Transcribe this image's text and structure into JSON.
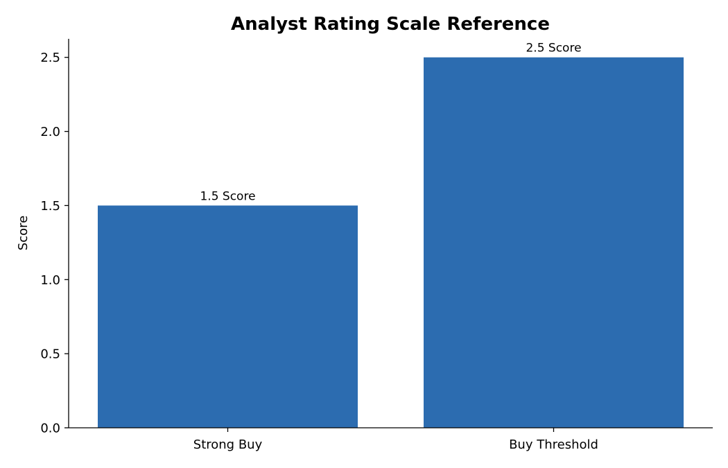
{
  "chart_data": {
    "type": "bar",
    "title": "Analyst Rating Scale Reference",
    "xlabel": "",
    "ylabel": "Score",
    "categories": [
      "Strong Buy",
      "Buy Threshold"
    ],
    "values": [
      1.5,
      2.5
    ],
    "data_labels": [
      "1.5 Score",
      "2.5 Score"
    ],
    "ylim": [
      0,
      2.625
    ],
    "yticks": [
      0.0,
      0.5,
      1.0,
      1.5,
      2.0,
      2.5
    ],
    "ytick_labels": [
      "0.0",
      "0.5",
      "1.0",
      "1.5",
      "2.0",
      "2.5"
    ],
    "bar_color": "#2c6cb0",
    "grid": false,
    "legend": "none"
  }
}
